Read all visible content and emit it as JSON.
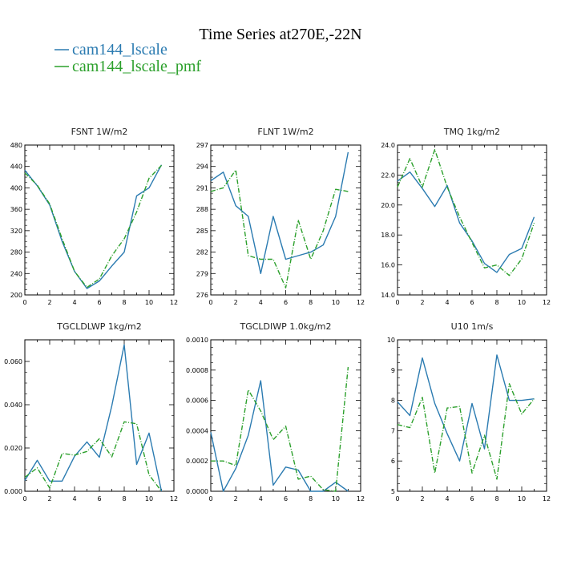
{
  "figure": {
    "title": "Time Series at270E,-22N"
  },
  "legend": [
    {
      "name": "cam144_lscale",
      "color": "#2b7bb1",
      "dash": "solid"
    },
    {
      "name": "cam144_lscale_pmf",
      "color": "#2ca02c",
      "dash": "dashdot"
    }
  ],
  "chart_data": [
    {
      "type": "line",
      "title": "FSNT   1W/m2",
      "x": [
        0,
        1,
        2,
        3,
        4,
        5,
        6,
        7,
        8,
        9,
        10,
        11
      ],
      "xlim": [
        0,
        12
      ],
      "xticks": [
        0,
        2,
        4,
        6,
        8,
        10,
        12
      ],
      "ylim": [
        200,
        480
      ],
      "yticks": [
        200,
        240,
        280,
        320,
        360,
        400,
        440,
        480
      ],
      "ytick_labels": [
        "200",
        "240",
        "280",
        "320",
        "360",
        "400",
        "440",
        "480"
      ],
      "series": [
        {
          "name": "cam144_lscale",
          "values": [
            433,
            404,
            368,
            300,
            244,
            212,
            226,
            254,
            280,
            385,
            400,
            443
          ]
        },
        {
          "name": "cam144_lscale_pmf",
          "values": [
            428,
            405,
            370,
            305,
            244,
            214,
            230,
            273,
            305,
            355,
            418,
            442
          ]
        }
      ]
    },
    {
      "type": "line",
      "title": "FLNT   1W/m2",
      "x": [
        0,
        1,
        2,
        3,
        4,
        5,
        6,
        7,
        8,
        9,
        10,
        11
      ],
      "xlim": [
        0,
        12
      ],
      "xticks": [
        0,
        2,
        4,
        6,
        8,
        10,
        12
      ],
      "ylim": [
        276,
        297
      ],
      "yticks": [
        276,
        279,
        282,
        285,
        288,
        291,
        294,
        297
      ],
      "ytick_labels": [
        "276",
        "279",
        "282",
        "285",
        "288",
        "291",
        "294",
        "297"
      ],
      "series": [
        {
          "name": "cam144_lscale",
          "values": [
            292,
            293.2,
            288.5,
            287,
            279,
            287,
            281,
            281.5,
            282,
            283,
            287,
            296
          ]
        },
        {
          "name": "cam144_lscale_pmf",
          "values": [
            290.5,
            291,
            293.5,
            281.5,
            281,
            281,
            277,
            286.5,
            281,
            285,
            290.8,
            290.5
          ]
        }
      ]
    },
    {
      "type": "line",
      "title": "TMQ   1kg/m2",
      "x": [
        0,
        1,
        2,
        3,
        4,
        5,
        6,
        7,
        8,
        9,
        10,
        11
      ],
      "xlim": [
        0,
        12
      ],
      "xticks": [
        0,
        2,
        4,
        6,
        8,
        10,
        12
      ],
      "ylim": [
        14,
        24
      ],
      "yticks": [
        14,
        16,
        18,
        20,
        22,
        24
      ],
      "ytick_labels": [
        "14.0",
        "16.0",
        "18.0",
        "20.0",
        "22.0",
        "24.0"
      ],
      "series": [
        {
          "name": "cam144_lscale",
          "values": [
            21.6,
            22.2,
            21.1,
            19.9,
            21.3,
            18.8,
            17.6,
            16.1,
            15.5,
            16.7,
            17.1,
            19.2
          ]
        },
        {
          "name": "cam144_lscale_pmf",
          "values": [
            21.2,
            23.1,
            21.2,
            23.7,
            21.2,
            19.2,
            17.5,
            15.8,
            16.0,
            15.3,
            16.4,
            18.8
          ]
        }
      ]
    },
    {
      "type": "line",
      "title": "TGCLDLWP   1kg/m2",
      "x": [
        0,
        1,
        2,
        3,
        4,
        5,
        6,
        7,
        8,
        9,
        10,
        11
      ],
      "xlim": [
        0,
        12
      ],
      "xticks": [
        0,
        2,
        4,
        6,
        8,
        10,
        12
      ],
      "ylim": [
        0,
        0.07
      ],
      "yticks": [
        0,
        0.02,
        0.04,
        0.06
      ],
      "ytick_labels": [
        "0.000",
        "0.020",
        "0.040",
        "0.060"
      ],
      "series": [
        {
          "name": "cam144_lscale",
          "values": [
            0.005,
            0.0143,
            0.0047,
            0.0047,
            0.0162,
            0.0228,
            0.0157,
            0.0395,
            0.0677,
            0.0124,
            0.0269,
            0.0
          ]
        },
        {
          "name": "cam144_lscale_pmf",
          "values": [
            0.0065,
            0.0108,
            0.0015,
            0.0175,
            0.0167,
            0.0184,
            0.0243,
            0.0159,
            0.0321,
            0.0312,
            0.0076,
            0.0
          ]
        }
      ]
    },
    {
      "type": "line",
      "title": "TGCLDIWP   1.0kg/m2",
      "x": [
        0,
        1,
        2,
        3,
        4,
        5,
        6,
        7,
        8,
        9,
        10,
        11
      ],
      "xlim": [
        0,
        12
      ],
      "xticks": [
        0,
        2,
        4,
        6,
        8,
        10,
        12
      ],
      "ylim": [
        0,
        0.001
      ],
      "yticks": [
        0,
        0.0002,
        0.0004,
        0.0006,
        0.0008,
        0.001
      ],
      "ytick_labels": [
        "0.0000",
        "0.0002",
        "0.0004",
        "0.0006",
        "0.0008",
        "0.0010"
      ],
      "series": [
        {
          "name": "cam144_lscale",
          "values": [
            0.00039,
            0.0,
            0.00015,
            0.00037,
            0.00073,
            4e-05,
            0.00016,
            0.00014,
            0.0,
            0.0,
            6e-05,
            0.0
          ]
        },
        {
          "name": "cam144_lscale_pmf",
          "values": [
            0.0002,
            0.0002,
            0.00017,
            0.00067,
            0.00053,
            0.00034,
            0.00043,
            8e-05,
            0.0001,
            1e-05,
            0.0,
            0.00082
          ]
        }
      ]
    },
    {
      "type": "line",
      "title": "U10   1m/s",
      "x": [
        0,
        1,
        2,
        3,
        4,
        5,
        6,
        7,
        8,
        9,
        10,
        11
      ],
      "xlim": [
        0,
        12
      ],
      "xticks": [
        0,
        2,
        4,
        6,
        8,
        10,
        12
      ],
      "ylim": [
        5,
        10
      ],
      "yticks": [
        5,
        6,
        7,
        8,
        9,
        10
      ],
      "ytick_labels": [
        "5",
        "6",
        "7",
        "8",
        "9",
        "10"
      ],
      "series": [
        {
          "name": "cam144_lscale",
          "values": [
            7.95,
            7.5,
            9.4,
            7.9,
            6.9,
            6.0,
            7.9,
            6.4,
            9.5,
            8.0,
            8.0,
            8.05
          ]
        },
        {
          "name": "cam144_lscale_pmf",
          "values": [
            7.2,
            7.1,
            8.1,
            5.6,
            7.75,
            7.8,
            5.6,
            6.85,
            5.4,
            8.55,
            7.55,
            8.05
          ]
        }
      ]
    }
  ]
}
